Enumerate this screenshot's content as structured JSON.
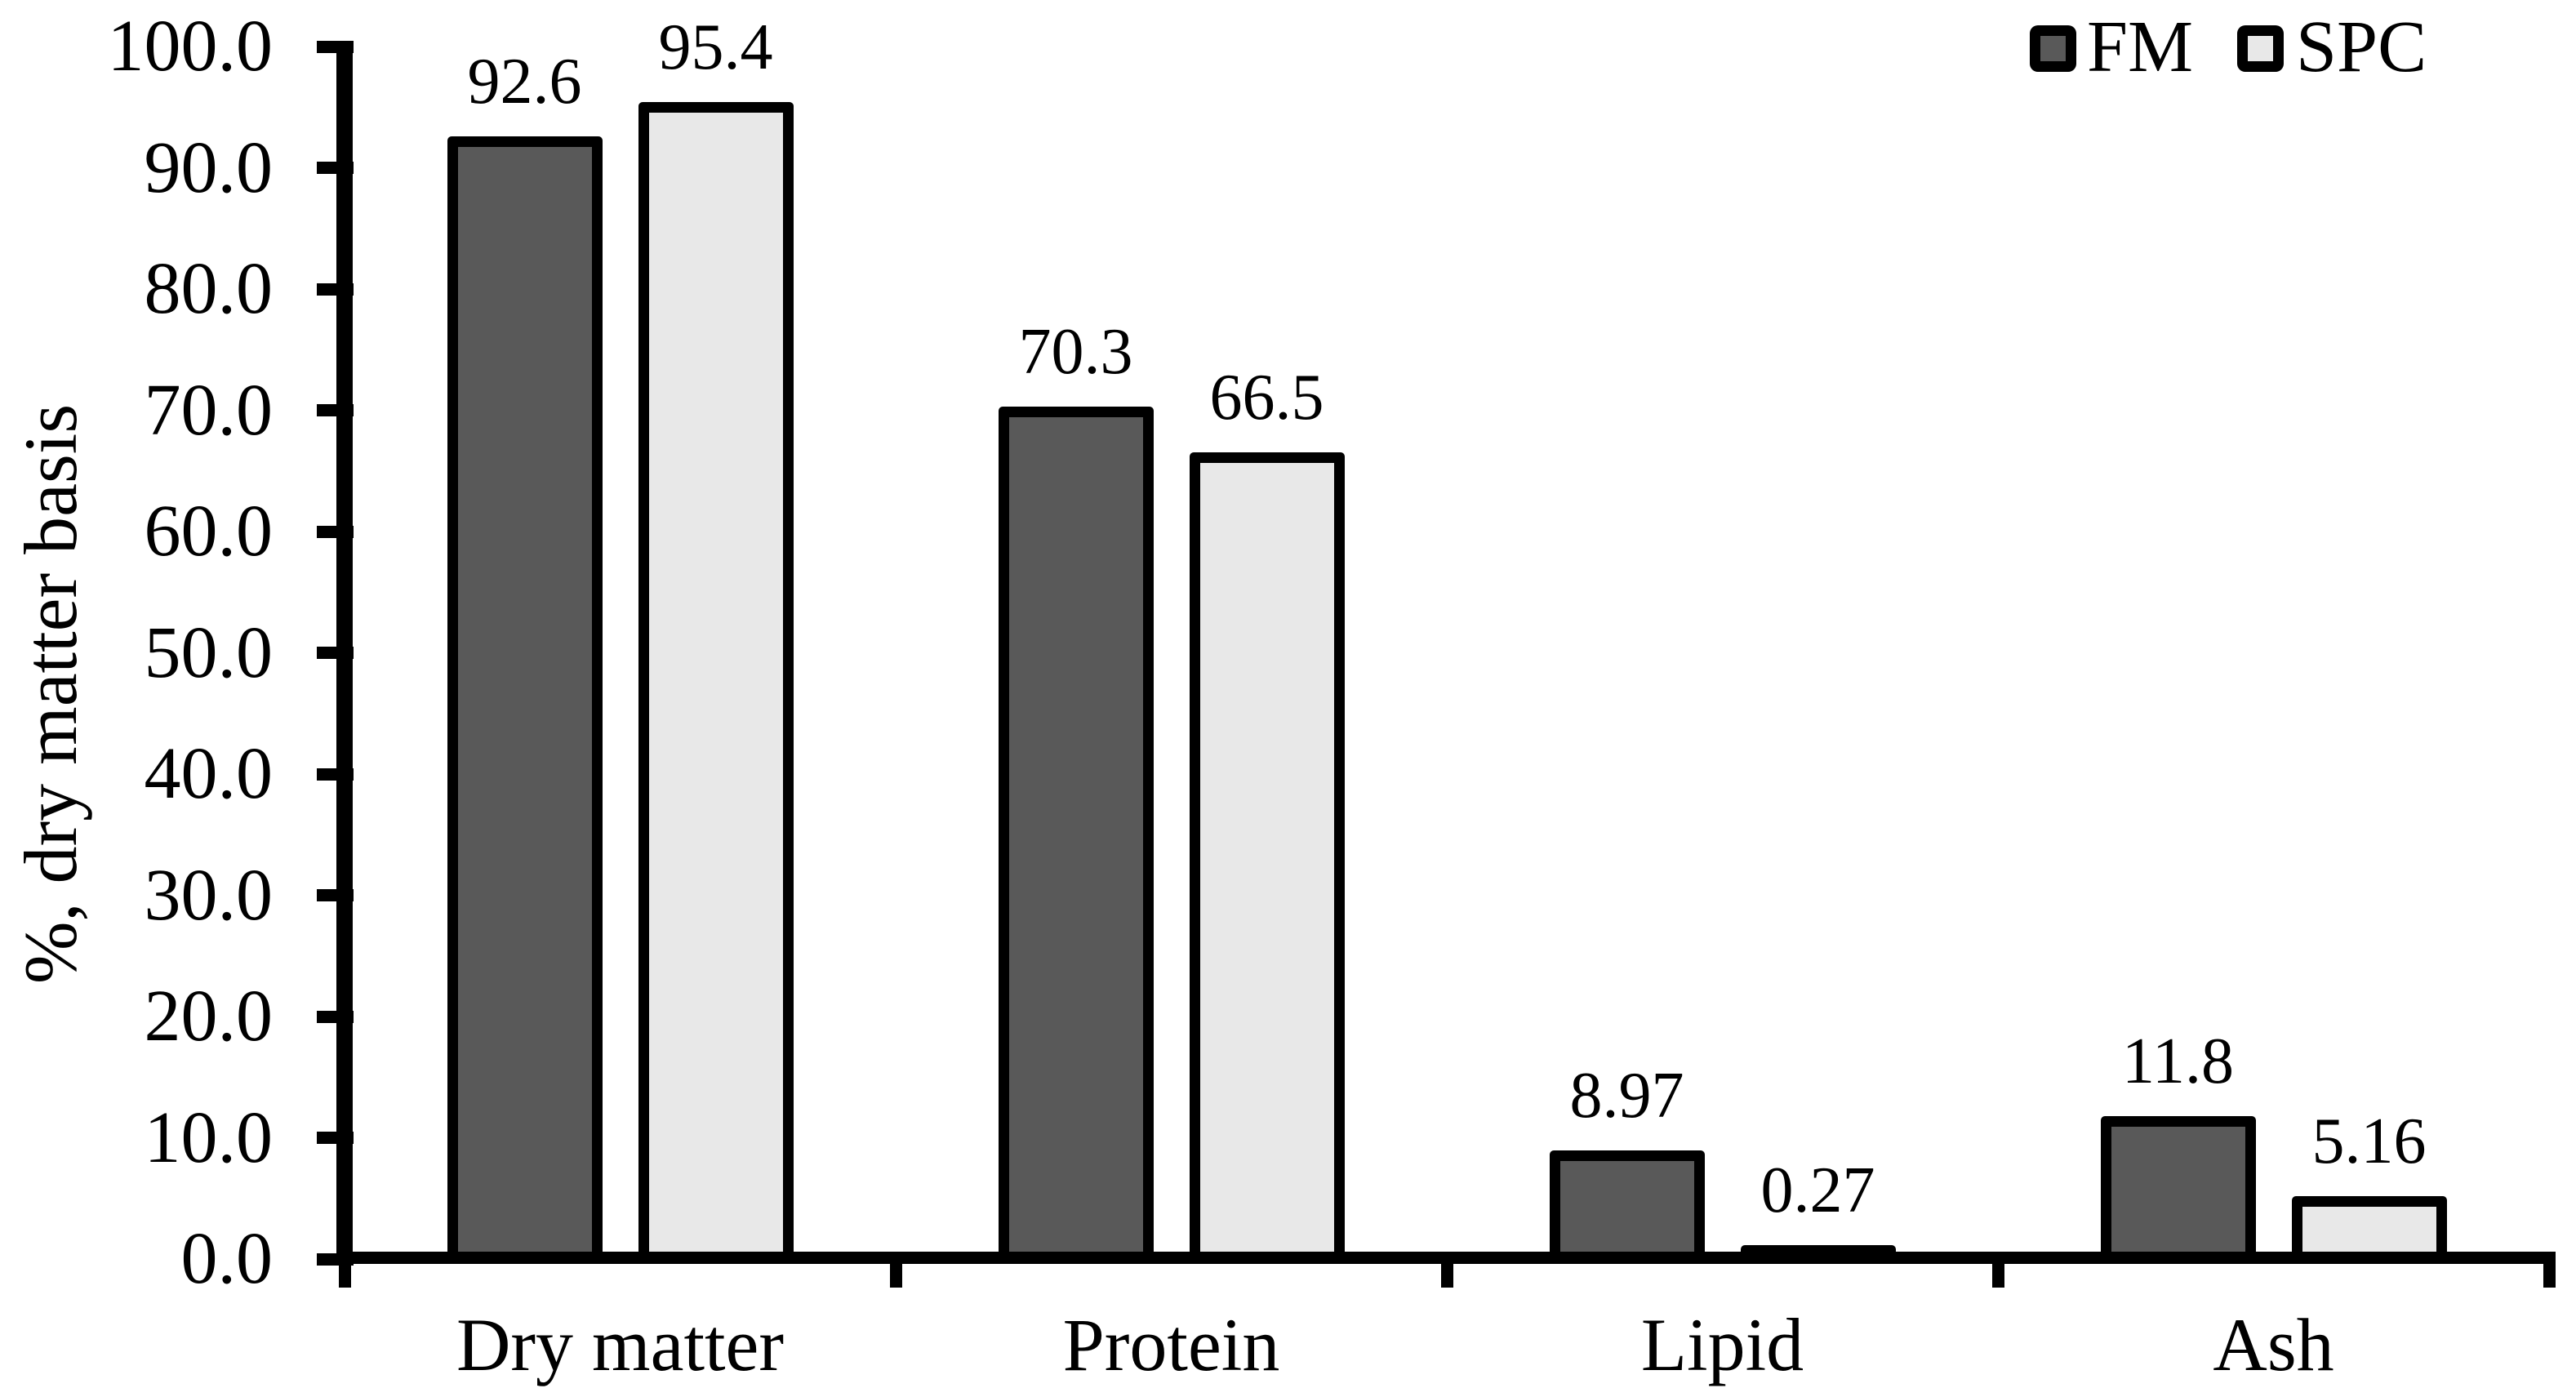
{
  "figure": {
    "background": "#ffffff",
    "text_color": "#000000"
  },
  "chart_data": {
    "type": "bar",
    "title": "",
    "xlabel": "",
    "ylabel": "%, dry matter basis",
    "categories": [
      "Dry matter",
      "Protein",
      "Lipid",
      "Ash"
    ],
    "series": [
      {
        "name": "FM",
        "values": [
          92.6,
          70.3,
          8.97,
          11.8
        ],
        "value_labels": [
          "92.6",
          "70.3",
          "8.97",
          "11.8"
        ],
        "fill": "#595959"
      },
      {
        "name": "SPC",
        "values": [
          95.4,
          66.5,
          0.27,
          5.16
        ],
        "value_labels": [
          "95.4",
          "66.5",
          "0.27",
          "5.16"
        ],
        "fill": "#e8e8e8"
      }
    ],
    "ylim": [
      0,
      100
    ],
    "y_tick_step": 10,
    "y_tick_labels": [
      "0.0",
      "10.0",
      "20.0",
      "30.0",
      "40.0",
      "50.0",
      "60.0",
      "70.0",
      "80.0",
      "90.0",
      "100.0"
    ],
    "bar_border_color": "#000000",
    "grid": false,
    "legend": {
      "position": "top-right",
      "entries": [
        "FM",
        "SPC"
      ]
    }
  }
}
